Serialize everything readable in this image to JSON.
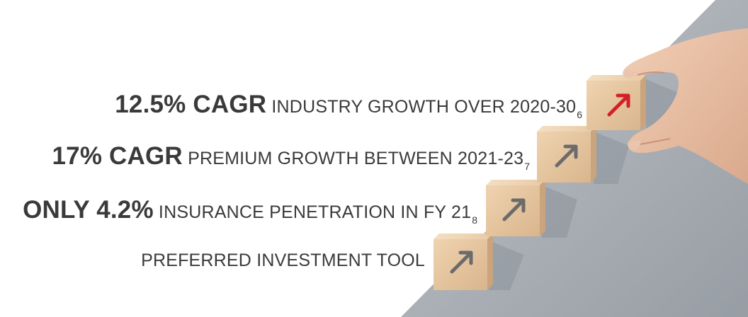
{
  "statements": [
    {
      "highlight": "12.5% CAGR",
      "text": " INDUSTRY GROWTH OVER 2020-30",
      "footnote": "6"
    },
    {
      "highlight": "17% CAGR",
      "text": " PREMIUM GROWTH BETWEEN 2021-23",
      "footnote": "7"
    },
    {
      "highlight": "ONLY 4.2%",
      "text": " INSURANCE PENETRATION IN FY 21",
      "footnote": "8"
    },
    {
      "highlight": "",
      "text": "PREFERRED INVESTMENT TOOL",
      "footnote": ""
    }
  ],
  "colors": {
    "text": "#3a3a3a",
    "backdrop": "#a8aeb5",
    "block_wood": "#e6c7a2",
    "arrow_gray": "#6b6b6b",
    "arrow_red": "#d32027"
  },
  "icons": [
    "arrow-up-right-icon",
    "arrow-up-right-icon",
    "arrow-up-right-icon",
    "red-arrow-up-right-icon"
  ]
}
